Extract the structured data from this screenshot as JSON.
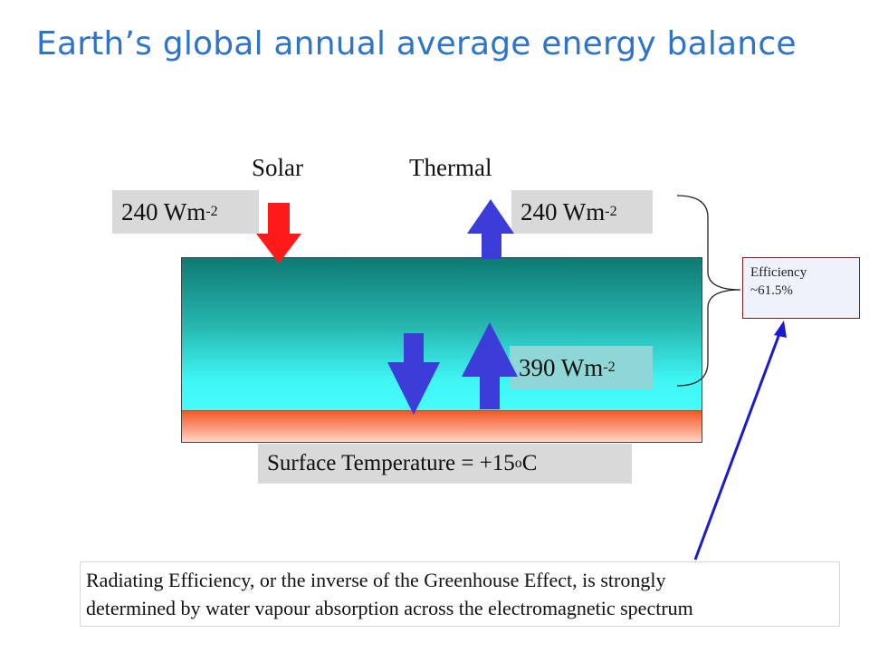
{
  "title": "Earth’s global annual average energy balance",
  "labels": {
    "solar": "Solar",
    "thermal": "Thermal"
  },
  "flux": {
    "solar_in": {
      "value": "240 Wm",
      "exp": "-2"
    },
    "thermal_out": {
      "value": "240 Wm",
      "exp": "-2"
    },
    "surface_emission": {
      "value": "390 Wm",
      "exp": "-2"
    }
  },
  "surface": {
    "prefix": "Surface Temperature = +15",
    "sup": "o",
    "suffix": "C"
  },
  "efficiency": {
    "line1": "Efficiency",
    "line2": "~61.5%"
  },
  "note": {
    "line1": "Radiating Efficiency, or the inverse of the Greenhouse Effect, is strongly",
    "line2": "determined by water vapour absorption across the electromagnetic spectrum"
  },
  "colors": {
    "title": "#2e74c8",
    "solar_arrow": "#ff1a1a",
    "thermal_arrow": "#3c3cd8",
    "pointer_line": "#1a1ad0",
    "efficiency_border": "#8a1c1c"
  }
}
